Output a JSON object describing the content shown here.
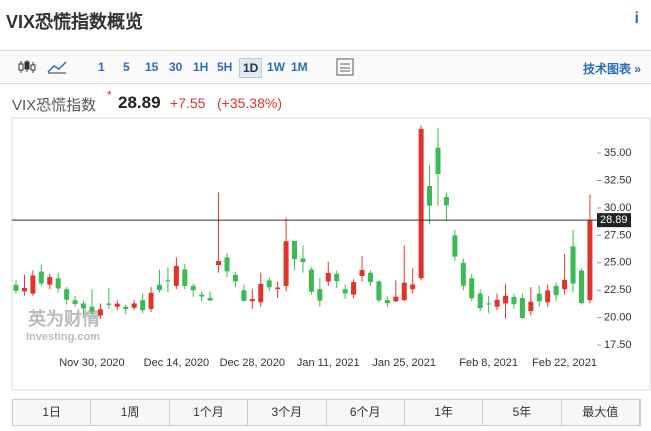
{
  "header": {
    "title": "VIX恐慌指数概览",
    "info": "i"
  },
  "toolbar": {
    "intervals": [
      "1",
      "5",
      "15",
      "30",
      "1H",
      "5H",
      "1D",
      "1W",
      "1M"
    ],
    "active_interval": 6,
    "link": "技术图表 »"
  },
  "quote": {
    "name": "VIX恐慌指数",
    "marker": "*",
    "price": 28.89,
    "change": "+7.55",
    "change_pct": "(+35.38%)"
  },
  "watermark": {
    "brand": "英为财情",
    "site": "Investing.com"
  },
  "chart_data": {
    "type": "candlestick",
    "up_color": "#e0342a",
    "down_color": "#3cba54",
    "categories": [
      null,
      null,
      null,
      null,
      null,
      null,
      null,
      null,
      null,
      "Nov 30, 2020",
      null,
      null,
      null,
      null,
      null,
      null,
      null,
      null,
      null,
      "Dec 14, 2020",
      null,
      null,
      null,
      null,
      null,
      null,
      null,
      null,
      "Dec 28, 2020",
      null,
      null,
      null,
      null,
      null,
      null,
      null,
      null,
      "Jan 11, 2021",
      null,
      null,
      null,
      null,
      null,
      null,
      null,
      null,
      "Jan 25, 2021",
      null,
      null,
      null,
      null,
      null,
      null,
      null,
      null,
      null,
      "Feb 8, 2021",
      null,
      null,
      null,
      null,
      null,
      null,
      null,
      null,
      "Feb 22, 2021",
      null,
      null,
      null
    ],
    "open": [
      23.0,
      22.4,
      22.2,
      24.2,
      23.0,
      23.6,
      22.6,
      21.6,
      21.3,
      21.0,
      20.2,
      21.3,
      21.0,
      21.0,
      20.9,
      21.6,
      20.8,
      23.0,
      23.4,
      22.9,
      24.4,
      22.9,
      22.1,
      21.8,
      24.8,
      25.5,
      23.9,
      22.5,
      21.5,
      21.4,
      23.4,
      22.6,
      22.9,
      27.0,
      25.4,
      24.4,
      22.6,
      23.3,
      24.0,
      22.6,
      22.1,
      23.8,
      24.1,
      23.3,
      21.6,
      21.5,
      21.6,
      22.6,
      23.6,
      32.0,
      35.5,
      31.0,
      27.5,
      25.0,
      23.6,
      22.2,
      21.3,
      21.0,
      21.3,
      21.9,
      21.8,
      20.6,
      22.2,
      21.4,
      22.9,
      22.6,
      26.5,
      24.3,
      21.6
    ],
    "high": [
      23.4,
      23.9,
      24.3,
      24.8,
      24.0,
      24.1,
      22.8,
      22.0,
      21.6,
      22.6,
      21.3,
      22.7,
      21.6,
      21.2,
      21.6,
      22.2,
      22.8,
      24.4,
      24.6,
      25.5,
      24.9,
      23.1,
      22.4,
      22.4,
      31.4,
      25.9,
      24.2,
      23.0,
      22.6,
      24.1,
      23.7,
      23.3,
      29.1,
      27.0,
      26.6,
      24.6,
      23.6,
      25.1,
      24.3,
      23.0,
      23.5,
      25.6,
      24.3,
      23.4,
      22.0,
      23.4,
      26.6,
      24.5,
      37.5,
      33.9,
      37.3,
      31.4,
      28.0,
      25.4,
      24.0,
      22.6,
      22.0,
      22.2,
      23.1,
      22.2,
      22.2,
      22.8,
      22.9,
      23.0,
      23.2,
      25.8,
      28.0,
      24.5,
      31.2
    ],
    "low": [
      22.2,
      22.0,
      22.0,
      22.9,
      22.6,
      22.3,
      21.2,
      21.0,
      20.3,
      20.3,
      19.9,
      20.8,
      20.7,
      20.3,
      20.7,
      20.4,
      20.5,
      22.3,
      22.3,
      22.6,
      22.6,
      21.9,
      21.5,
      21.5,
      24.1,
      23.7,
      22.8,
      21.5,
      20.8,
      21.0,
      22.4,
      21.8,
      22.4,
      24.3,
      24.1,
      22.1,
      21.0,
      22.9,
      22.7,
      21.7,
      21.8,
      23.3,
      22.9,
      21.4,
      21.0,
      21.4,
      21.5,
      22.2,
      23.4,
      28.5,
      30.2,
      28.8,
      25.2,
      22.5,
      21.5,
      20.6,
      20.4,
      20.7,
      19.9,
      20.8,
      19.9,
      20.2,
      21.0,
      21.0,
      21.5,
      22.1,
      22.3,
      21.2,
      21.3
    ],
    "close": [
      22.45,
      22.71,
      23.84,
      23.11,
      23.7,
      22.66,
      21.64,
      21.25,
      20.84,
      20.57,
      20.77,
      21.17,
      21.28,
      20.79,
      21.3,
      20.68,
      22.27,
      22.52,
      23.31,
      24.72,
      22.89,
      22.5,
      21.93,
      21.57,
      25.16,
      24.23,
      23.31,
      21.53,
      21.7,
      23.08,
      22.77,
      22.75,
      26.97,
      25.34,
      25.07,
      22.37,
      21.56,
      24.08,
      23.33,
      22.21,
      23.25,
      24.34,
      23.24,
      21.58,
      21.32,
      21.91,
      23.19,
      23.02,
      37.21,
      30.21,
      33.09,
      30.24,
      25.56,
      22.91,
      21.77,
      20.87,
      21.24,
      21.63,
      21.99,
      21.25,
      19.97,
      21.46,
      21.5,
      22.49,
      22.05,
      23.45,
      23.11,
      21.34,
      28.89
    ],
    "ylim": [
      16.6,
      38.2
    ],
    "yticks": [
      {
        "value": 17.5,
        "label": "17.50"
      },
      {
        "value": 20,
        "label": "20.00"
      },
      {
        "value": 22.5,
        "label": "22.50"
      },
      {
        "value": 25,
        "label": "25.00"
      },
      {
        "value": 27.5,
        "label": "27.50"
      },
      {
        "value": 30,
        "label": "30.00"
      },
      {
        "value": 32.5,
        "label": "32.50"
      },
      {
        "value": 35,
        "label": "35.00"
      }
    ]
  },
  "ranges": [
    "1日",
    "1周",
    "1个月",
    "3个月",
    "6个月",
    "1年",
    "5年",
    "最大值"
  ]
}
